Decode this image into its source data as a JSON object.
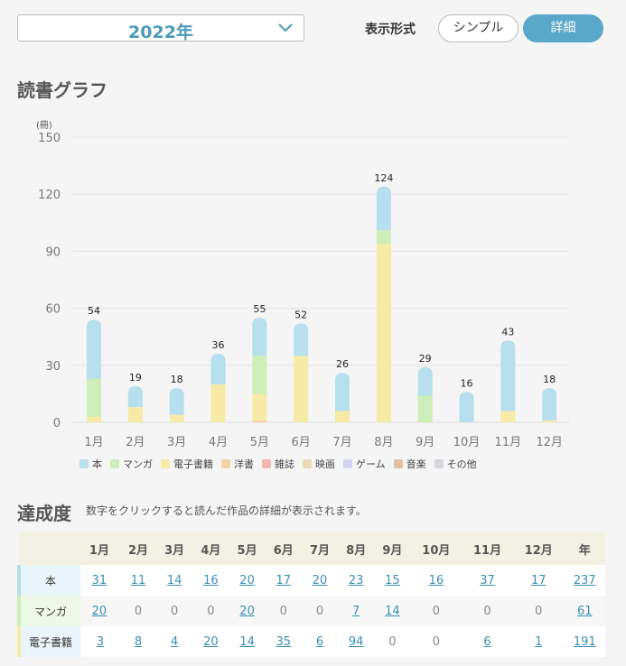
{
  "header": {
    "year": "2022年",
    "mode_label": "表示形式",
    "mode_simple": "シンプル",
    "mode_detail": "詳細"
  },
  "graph_title": "読書グラフ",
  "achievement_title": "達成度",
  "achievement_note": "数字をクリックすると読んだ作品の詳細が表示されます。",
  "colors": {
    "本": "#b8dfee",
    "マンガ": "#cdeeb8",
    "電子書籍": "#f5eaa6",
    "洋書": "#f8d2a6",
    "雑誌": "#f3b6ae",
    "映画": "#eadcb8",
    "ゲーム": "#d3d3f3",
    "音楽": "#e1c29e",
    "その他": "#d6d6dc"
  },
  "chart_data": {
    "type": "bar",
    "stacked": true,
    "ylabel": "(冊)",
    "ylim": [
      0,
      150
    ],
    "yticks": [
      0,
      30,
      60,
      90,
      120,
      150
    ],
    "categories": [
      "1月",
      "2月",
      "3月",
      "4月",
      "5月",
      "6月",
      "7月",
      "8月",
      "9月",
      "10月",
      "11月",
      "12月"
    ],
    "totals": [
      54,
      19,
      18,
      36,
      55,
      52,
      26,
      124,
      29,
      16,
      43,
      18
    ],
    "series": [
      {
        "name": "本",
        "values": [
          31,
          11,
          14,
          16,
          20,
          17,
          20,
          23,
          15,
          16,
          37,
          17
        ]
      },
      {
        "name": "マンガ",
        "values": [
          20,
          0,
          0,
          0,
          20,
          0,
          0,
          7,
          14,
          0,
          0,
          0
        ]
      },
      {
        "name": "電子書籍",
        "values": [
          3,
          8,
          4,
          20,
          14,
          35,
          6,
          94,
          0,
          0,
          6,
          1
        ]
      },
      {
        "name": "洋書",
        "values": [
          0,
          0,
          0,
          0,
          1,
          0,
          0,
          0,
          0,
          0,
          0,
          0
        ]
      },
      {
        "name": "雑誌",
        "values": [
          0,
          0,
          0,
          0,
          0,
          0,
          0,
          0,
          0,
          0,
          0,
          0
        ]
      },
      {
        "name": "映画",
        "values": [
          0,
          0,
          0,
          0,
          0,
          0,
          0,
          0,
          0,
          0,
          0,
          0
        ]
      },
      {
        "name": "ゲーム",
        "values": [
          0,
          0,
          0,
          0,
          0,
          0,
          0,
          0,
          0,
          0,
          0,
          0
        ]
      },
      {
        "name": "音楽",
        "values": [
          0,
          0,
          0,
          0,
          0,
          0,
          0,
          0,
          0,
          0,
          0,
          0
        ]
      },
      {
        "name": "その他",
        "values": [
          0,
          0,
          0,
          0,
          0,
          0,
          0,
          0,
          0,
          0,
          0,
          0
        ]
      }
    ]
  },
  "table": {
    "headers": [
      "",
      "1月",
      "2月",
      "3月",
      "4月",
      "5月",
      "6月",
      "7月",
      "8月",
      "9月",
      "10月",
      "11月",
      "12月",
      "年"
    ],
    "rows": [
      {
        "label": "本",
        "color": "#b8dfee",
        "values": [
          "31",
          "11",
          "14",
          "16",
          "20",
          "17",
          "20",
          "23",
          "15",
          "16",
          "37",
          "17",
          "237"
        ]
      },
      {
        "label": "マンガ",
        "color": "#cdeeb8",
        "values": [
          "20",
          "0",
          "0",
          "0",
          "20",
          "0",
          "0",
          "7",
          "14",
          "0",
          "0",
          "0",
          "61"
        ]
      },
      {
        "label": "電子書籍",
        "color": "#f5eaa6",
        "values": [
          "3",
          "8",
          "4",
          "20",
          "14",
          "35",
          "6",
          "94",
          "0",
          "0",
          "6",
          "1",
          "191"
        ]
      }
    ]
  }
}
